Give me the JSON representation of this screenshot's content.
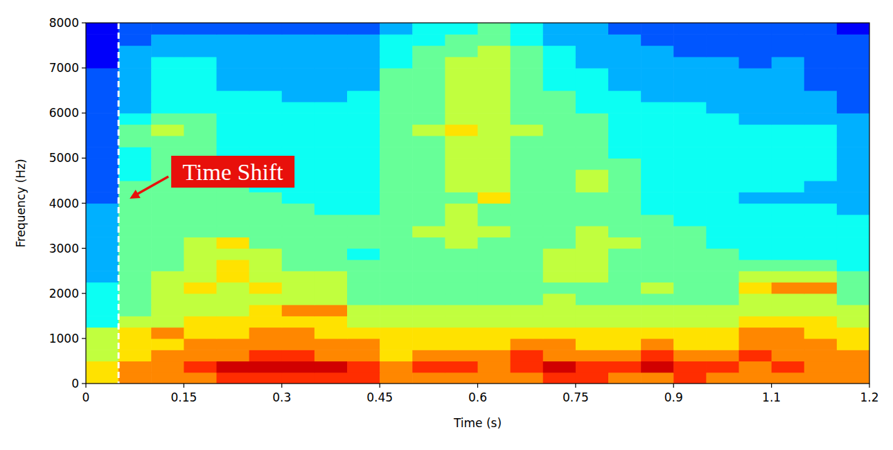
{
  "chart_data": {
    "type": "heatmap",
    "x_label": "Time (s)",
    "y_label": "Frequency (Hz)",
    "xlim": [
      0,
      1.2
    ],
    "ylim": [
      0,
      8000
    ],
    "xticks": [
      0,
      0.15,
      0.3,
      0.45,
      0.6,
      0.75,
      0.9,
      {
        "value": 1.05,
        "label": "1.1"
      },
      1.2
    ],
    "yticks": [
      0,
      1000,
      2000,
      3000,
      4000,
      5000,
      6000,
      7000,
      8000
    ],
    "grid": false,
    "time_bins": [
      0,
      0.05,
      0.1,
      0.15,
      0.2,
      0.25,
      0.3,
      0.35,
      0.4,
      0.45,
      0.5,
      0.55,
      0.6,
      0.65,
      0.7,
      0.75,
      0.8,
      0.85,
      0.9,
      0.95,
      1.0,
      1.05,
      1.1,
      1.15,
      1.2
    ],
    "freq_bins": [
      0,
      250,
      500,
      750,
      1000,
      1250,
      1500,
      1750,
      2000,
      2250,
      2500,
      2750,
      3000,
      3250,
      3500,
      3750,
      4000,
      4250,
      4500,
      4750,
      5000,
      5250,
      5500,
      5750,
      6000,
      6250,
      6500,
      6750,
      7000,
      7250,
      7500,
      7750,
      8000
    ],
    "cells": [
      [
        6,
        7,
        7,
        7,
        8,
        8,
        8,
        8,
        8,
        7,
        7,
        7,
        7,
        7,
        8,
        8,
        7,
        7,
        8,
        7,
        7,
        7,
        7,
        7
      ],
      [
        6,
        7,
        7,
        8,
        9,
        9,
        9,
        9,
        8,
        7,
        8,
        8,
        7,
        8,
        9,
        8,
        8,
        9,
        8,
        8,
        7,
        8,
        7,
        7
      ],
      [
        5,
        6,
        7,
        7,
        7,
        8,
        8,
        7,
        7,
        6,
        7,
        7,
        7,
        8,
        7,
        7,
        7,
        8,
        7,
        7,
        8,
        7,
        7,
        7
      ],
      [
        5,
        6,
        6,
        7,
        7,
        7,
        7,
        7,
        7,
        6,
        6,
        6,
        6,
        7,
        7,
        6,
        6,
        7,
        6,
        6,
        7,
        7,
        7,
        6
      ],
      [
        5,
        6,
        7,
        6,
        6,
        7,
        7,
        6,
        6,
        6,
        6,
        6,
        6,
        6,
        6,
        6,
        6,
        6,
        6,
        6,
        7,
        7,
        6,
        6
      ],
      [
        3,
        5,
        5,
        6,
        6,
        6,
        6,
        6,
        5,
        5,
        5,
        5,
        5,
        5,
        5,
        5,
        5,
        5,
        5,
        5,
        6,
        6,
        6,
        5
      ],
      [
        3,
        4,
        5,
        5,
        5,
        6,
        7,
        7,
        5,
        5,
        5,
        5,
        5,
        5,
        5,
        5,
        5,
        5,
        5,
        5,
        5,
        5,
        5,
        5
      ],
      [
        3,
        4,
        5,
        5,
        5,
        5,
        5,
        5,
        4,
        4,
        4,
        4,
        4,
        4,
        5,
        4,
        4,
        4,
        4,
        4,
        5,
        5,
        5,
        4
      ],
      [
        3,
        4,
        5,
        6,
        5,
        6,
        5,
        5,
        4,
        4,
        4,
        4,
        4,
        4,
        4,
        4,
        4,
        5,
        4,
        4,
        6,
        7,
        7,
        4
      ],
      [
        2,
        4,
        5,
        5,
        6,
        5,
        5,
        5,
        4,
        4,
        4,
        4,
        4,
        4,
        5,
        5,
        4,
        4,
        4,
        4,
        5,
        5,
        5,
        4
      ],
      [
        2,
        4,
        4,
        5,
        6,
        5,
        4,
        4,
        4,
        4,
        4,
        4,
        4,
        4,
        5,
        5,
        4,
        4,
        4,
        4,
        4,
        4,
        4,
        3
      ],
      [
        2,
        4,
        4,
        5,
        5,
        5,
        4,
        4,
        3,
        4,
        4,
        4,
        4,
        4,
        5,
        5,
        4,
        4,
        4,
        4,
        3,
        3,
        3,
        3
      ],
      [
        2,
        4,
        4,
        5,
        6,
        4,
        4,
        4,
        4,
        4,
        4,
        5,
        4,
        4,
        4,
        5,
        5,
        4,
        4,
        3,
        3,
        3,
        3,
        3
      ],
      [
        2,
        4,
        4,
        4,
        4,
        4,
        4,
        4,
        4,
        4,
        5,
        5,
        5,
        4,
        4,
        5,
        4,
        4,
        4,
        3,
        3,
        3,
        3,
        3
      ],
      [
        2,
        4,
        4,
        4,
        4,
        4,
        4,
        4,
        4,
        4,
        4,
        5,
        4,
        4,
        4,
        4,
        4,
        4,
        3,
        3,
        3,
        3,
        3,
        3
      ],
      [
        2,
        4,
        4,
        4,
        4,
        4,
        4,
        3,
        3,
        4,
        4,
        5,
        4,
        4,
        4,
        4,
        4,
        3,
        3,
        3,
        3,
        3,
        3,
        2
      ],
      [
        1,
        4,
        4,
        4,
        4,
        4,
        3,
        3,
        3,
        4,
        4,
        4,
        6,
        4,
        4,
        4,
        4,
        3,
        3,
        3,
        2,
        2,
        2,
        2
      ],
      [
        1,
        4,
        4,
        4,
        4,
        3,
        3,
        3,
        3,
        4,
        4,
        5,
        5,
        4,
        4,
        5,
        4,
        3,
        3,
        3,
        3,
        3,
        2,
        2
      ],
      [
        1,
        3,
        4,
        4,
        4,
        3,
        3,
        3,
        3,
        4,
        4,
        5,
        5,
        4,
        4,
        5,
        4,
        3,
        3,
        3,
        3,
        3,
        3,
        2
      ],
      [
        1,
        3,
        4,
        4,
        4,
        3,
        3,
        3,
        3,
        4,
        4,
        5,
        5,
        4,
        4,
        4,
        4,
        3,
        3,
        3,
        3,
        3,
        3,
        2
      ],
      [
        1,
        3,
        4,
        4,
        3,
        3,
        3,
        3,
        3,
        4,
        4,
        5,
        5,
        4,
        4,
        4,
        3,
        3,
        3,
        3,
        3,
        3,
        3,
        2
      ],
      [
        1,
        4,
        4,
        4,
        3,
        3,
        3,
        3,
        3,
        4,
        4,
        5,
        5,
        4,
        4,
        4,
        3,
        3,
        3,
        3,
        3,
        3,
        3,
        2
      ],
      [
        1,
        4,
        5,
        4,
        3,
        3,
        3,
        3,
        3,
        4,
        5,
        6,
        5,
        5,
        4,
        4,
        3,
        3,
        3,
        3,
        3,
        3,
        3,
        2
      ],
      [
        1,
        3,
        4,
        4,
        3,
        3,
        3,
        3,
        3,
        4,
        4,
        5,
        5,
        4,
        4,
        4,
        3,
        3,
        3,
        3,
        2,
        2,
        2,
        2
      ],
      [
        1,
        2,
        3,
        3,
        3,
        3,
        3,
        3,
        3,
        4,
        4,
        5,
        5,
        4,
        4,
        3,
        3,
        3,
        3,
        2,
        2,
        2,
        2,
        1
      ],
      [
        1,
        2,
        3,
        3,
        3,
        3,
        2,
        2,
        3,
        4,
        4,
        5,
        5,
        4,
        4,
        3,
        3,
        2,
        2,
        2,
        2,
        2,
        2,
        1
      ],
      [
        1,
        2,
        3,
        3,
        2,
        2,
        2,
        2,
        2,
        4,
        4,
        5,
        5,
        4,
        3,
        3,
        2,
        2,
        2,
        2,
        2,
        2,
        1,
        1
      ],
      [
        1,
        2,
        3,
        3,
        2,
        2,
        2,
        2,
        2,
        4,
        4,
        5,
        5,
        4,
        3,
        3,
        2,
        2,
        2,
        2,
        2,
        2,
        1,
        1
      ],
      [
        0,
        2,
        3,
        3,
        2,
        2,
        2,
        2,
        2,
        3,
        4,
        5,
        5,
        4,
        3,
        2,
        2,
        2,
        2,
        2,
        1,
        2,
        1,
        1
      ],
      [
        0,
        2,
        2,
        2,
        2,
        2,
        2,
        2,
        2,
        3,
        4,
        4,
        5,
        4,
        3,
        2,
        2,
        2,
        1,
        1,
        1,
        1,
        1,
        1
      ],
      [
        0,
        1,
        2,
        2,
        2,
        2,
        2,
        2,
        2,
        3,
        3,
        4,
        4,
        3,
        2,
        2,
        2,
        1,
        1,
        1,
        1,
        1,
        1,
        1
      ],
      [
        0,
        1,
        1,
        1,
        1,
        1,
        1,
        1,
        1,
        2,
        3,
        3,
        4,
        3,
        2,
        2,
        1,
        1,
        1,
        1,
        1,
        1,
        1,
        0
      ]
    ],
    "vlines": [
      {
        "x": 0.05,
        "color": "#ffffff",
        "line_style": "dashed"
      }
    ],
    "annotations": [
      {
        "text": "Time Shift",
        "x": 0.05,
        "y": 4100,
        "color": "#e8100b"
      }
    ]
  }
}
